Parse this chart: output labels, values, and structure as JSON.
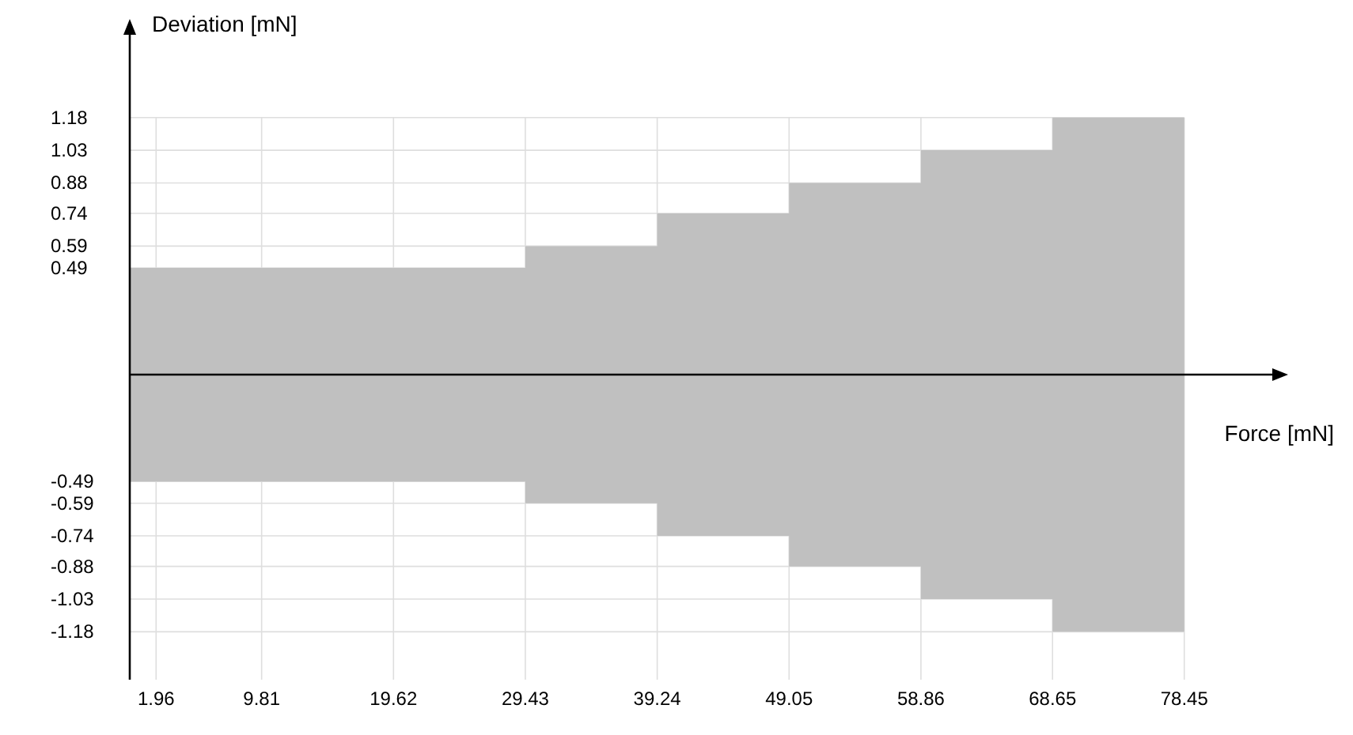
{
  "chart_data": {
    "type": "area",
    "xlabel": "Force [mN]",
    "ylabel": "Deviation [mN]",
    "x": [
      0,
      29.43,
      29.43,
      39.24,
      39.24,
      49.05,
      49.05,
      58.86,
      58.86,
      68.65,
      68.65,
      78.45
    ],
    "series": [
      {
        "color": "#c0c0c0",
        "values": [
          0.49,
          0.49,
          0.59,
          0.59,
          0.74,
          0.74,
          0.88,
          0.88,
          1.03,
          1.03,
          1.18,
          1.18
        ]
      },
      {
        "color": "#c0c0c0",
        "values": [
          -0.49,
          -0.49,
          -0.59,
          -0.59,
          -0.74,
          -0.74,
          -0.88,
          -0.88,
          -1.03,
          -1.03,
          -1.18,
          -1.18
        ]
      }
    ],
    "xlim": [
      0,
      85
    ],
    "ylim": [
      -1.4,
      1.56
    ],
    "xticks": [
      1.96,
      9.81,
      19.62,
      29.43,
      39.24,
      49.05,
      58.86,
      68.65,
      78.45
    ],
    "yticks": [
      -1.18,
      -1.03,
      -0.88,
      -0.74,
      -0.59,
      -0.49,
      0.49,
      0.59,
      0.74,
      0.88,
      1.03,
      1.18
    ],
    "grid": true
  }
}
